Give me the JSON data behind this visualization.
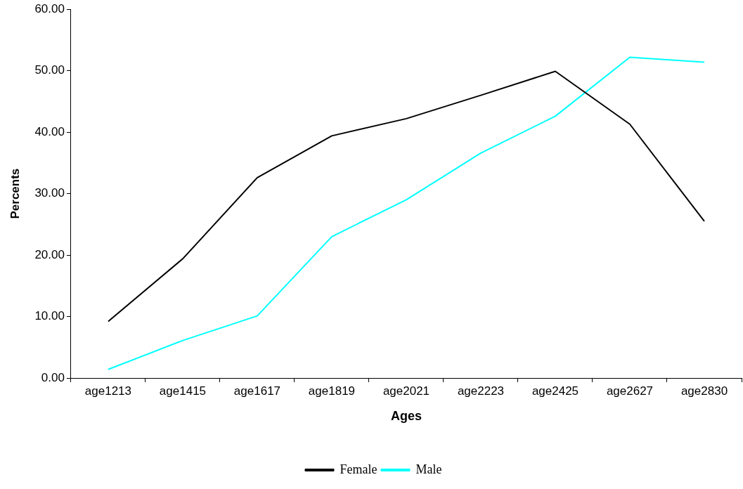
{
  "chart_data": {
    "type": "line",
    "xlabel": "Ages",
    "ylabel": "Percents",
    "categories": [
      "age1213",
      "age1415",
      "age1617",
      "age1819",
      "age2021",
      "age2223",
      "age2425",
      "age2627",
      "age2830"
    ],
    "series": [
      {
        "name": "Female",
        "color": "#000000",
        "values": [
          9.2,
          19.4,
          32.6,
          39.4,
          42.2,
          46.0,
          49.9,
          41.3,
          25.5
        ]
      },
      {
        "name": "Male",
        "color": "#00ffff",
        "values": [
          1.4,
          6.1,
          10.1,
          23.0,
          29.0,
          36.6,
          42.6,
          52.2,
          51.4
        ]
      }
    ],
    "ylim": [
      0,
      60
    ],
    "yticks": [
      {
        "value": 0,
        "label": "0.00"
      },
      {
        "value": 10,
        "label": "10.00"
      },
      {
        "value": 20,
        "label": "20.00"
      },
      {
        "value": 30,
        "label": "30.00"
      },
      {
        "value": 40,
        "label": "40.00"
      },
      {
        "value": 50,
        "label": "50.00"
      },
      {
        "value": 60,
        "label": "60.00"
      }
    ],
    "grid": false,
    "legend": "bottom",
    "marker": "none",
    "line_style": "solid"
  }
}
